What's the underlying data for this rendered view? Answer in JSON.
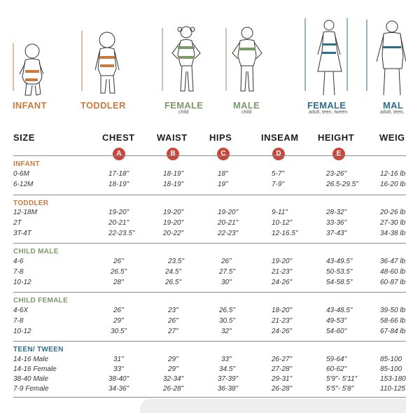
{
  "figures": [
    {
      "label": "INFANT",
      "sub": "",
      "color": "#c97a3f"
    },
    {
      "label": "TODDLER",
      "sub": "",
      "color": "#c97a3f"
    },
    {
      "label": "FEMALE",
      "sub": "child",
      "color": "#7a9a6a"
    },
    {
      "label": "MALE",
      "sub": "child",
      "color": "#7a9a6a"
    },
    {
      "label": "FEMALE",
      "sub": "adult, teen, tween",
      "color": "#2f6d8c"
    },
    {
      "label": "MAL",
      "sub": "adult, teen,",
      "color": "#2f6d8c"
    }
  ],
  "figure_marks": {
    "a": "A",
    "b": "B",
    "c": "C",
    "d": "D",
    "e": "E"
  },
  "headers": {
    "size": "SIZE",
    "chest": "CHEST",
    "waist": "WAIST",
    "hips": "HIPS",
    "inseam": "INSEAM",
    "height": "HEIGHT",
    "weight": "WEIG"
  },
  "badges": {
    "chest": "A",
    "waist": "B",
    "hips": "C",
    "inseam": "D",
    "height": "E"
  },
  "sections": [
    {
      "title": "INFANT",
      "color": "#c97a3f",
      "rows": [
        [
          "0-6M",
          "17-18\"",
          "18-19\"",
          "18\"",
          "5-7\"",
          "23-26\"",
          "12-16 lb"
        ],
        [
          "6-12M",
          "18-19\"",
          "18-19\"",
          "19\"",
          "7-9\"",
          "26.5-29.5\"",
          "16-20 lb"
        ]
      ]
    },
    {
      "title": "TODDLER",
      "color": "#c97a3f",
      "rows": [
        [
          "12-18M",
          "19-20\"",
          "19-20\"",
          "19-20\"",
          "9-11\"",
          "28-32\"",
          "20-26 lb"
        ],
        [
          "2T",
          "20-21\"",
          "19-20\"",
          "20-21\"",
          "10-12\"",
          "33-36\"",
          "27-30 lb"
        ],
        [
          "3T-4T",
          "22-23.5\"",
          "20-22\"",
          "22-23\"",
          "12-16.5\"",
          "37-43\"",
          "34-38 lb"
        ]
      ]
    },
    {
      "title": "CHILD MALE",
      "color": "#7a9a6a",
      "rows": [
        [
          "4-6",
          "26\"",
          "23.5\"",
          "26\"",
          "19-20\"",
          "43-49.5\"",
          "36-47 lb"
        ],
        [
          "7-8",
          "26.5\"",
          "24.5\"",
          "27.5\"",
          "21-23\"",
          "50-53.5\"",
          "48-60 lb"
        ],
        [
          "10-12",
          "28\"",
          "26.5\"",
          "30\"",
          "24-26\"",
          "54-58.5\"",
          "60-87 lb"
        ]
      ]
    },
    {
      "title": "CHILD FEMALE",
      "color": "#7a9a6a",
      "rows": [
        [
          "4-6X",
          "26\"",
          "23\"",
          "26.5\"",
          "18-20\"",
          "43-48.5\"",
          "39-50 lb"
        ],
        [
          "7-8",
          "29\"",
          "26\"",
          "30.5\"",
          "21-23\"",
          "49-53\"",
          "58-66 lb"
        ],
        [
          "10-12",
          "30.5\"",
          "27\"",
          "32\"",
          "24-26\"",
          "54-60\"",
          "67-84 lb"
        ]
      ]
    },
    {
      "title": "TEEN/ TWEEN",
      "color": "#2f6d8c",
      "rows": [
        [
          "14-16 Male",
          "31\"",
          "29\"",
          "33\"",
          "26-27\"",
          "59-64\"",
          "85-100"
        ],
        [
          "14-16 Female",
          "33\"",
          "29\"",
          "34.5\"",
          "27-28\"",
          "60-62\"",
          "85-100"
        ],
        [
          "38-40 Male",
          "38-40\"",
          "32-34\"",
          "37-39\"",
          "29-31\"",
          "5'9\"- 5'11\"",
          "153-180"
        ],
        [
          "7-9 Female",
          "34-36\"",
          "26-28\"",
          "36-38\"",
          "26-28\"",
          "5'5\"- 5'8\"",
          "110-125"
        ]
      ]
    }
  ]
}
